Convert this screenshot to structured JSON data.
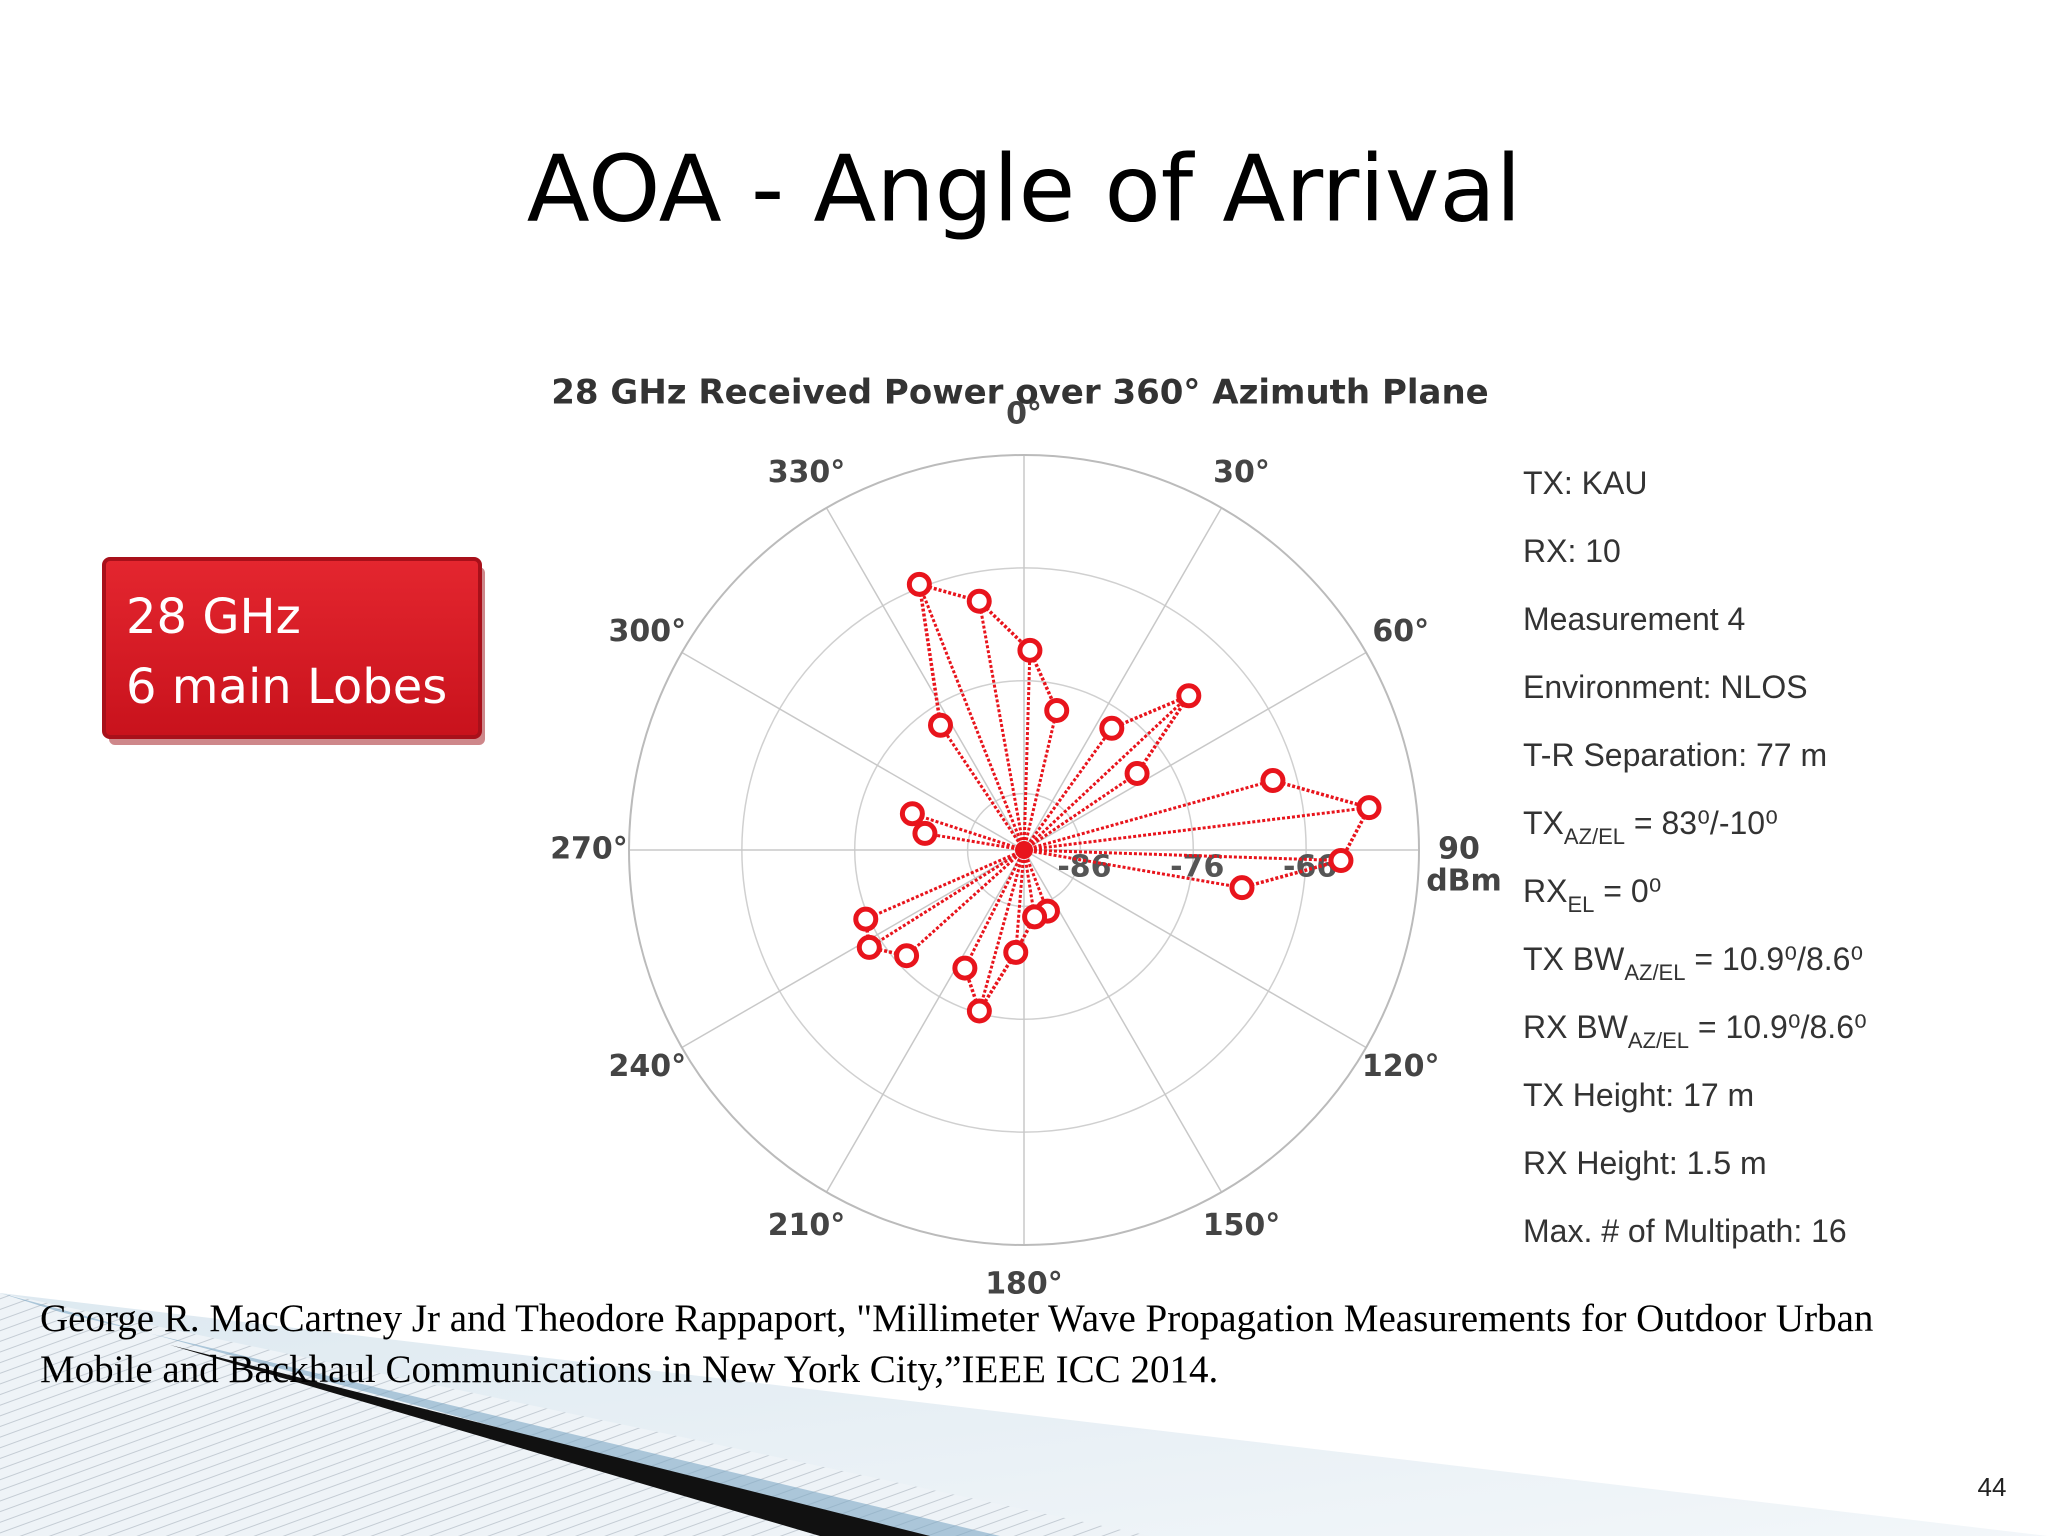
{
  "title": "AOA - Angle of Arrival",
  "callout": {
    "lines": [
      "28 GHz",
      "6 main Lobes"
    ]
  },
  "info": [
    {
      "main": "TX: KAU"
    },
    {
      "main": "RX: 10"
    },
    {
      "main": "Measurement 4"
    },
    {
      "main": "Environment: NLOS"
    },
    {
      "main": "T-R Separation: 77 m"
    },
    {
      "main": "TX",
      "sub": "AZ/EL",
      "rest": " = 83⁰/-10⁰"
    },
    {
      "main": "RX",
      "sub": "EL",
      "rest": " = 0⁰"
    },
    {
      "main": "TX BW",
      "sub": "AZ/EL",
      "rest": " = 10.9⁰/8.6⁰"
    },
    {
      "main": "RX BW",
      "sub": "AZ/EL",
      "rest": " = 10.9⁰/8.6⁰"
    },
    {
      "main": "TX Height: 17 m"
    },
    {
      "main": "RX Height: 1.5 m"
    },
    {
      "main": "Max. # of Multipath: 16"
    }
  ],
  "citation": {
    "lines": [
      "George R. MacCartney Jr and Theodore Rappaport, \"Millimeter Wave Propagation Measurements for Outdoor Urban",
      "Mobile and Backhaul Communications in New York City,”IEEE ICC 2014."
    ]
  },
  "page_number": "44",
  "chart_data": {
    "type": "polar",
    "title": "28 GHz Received Power over 360° Azimuth Plane",
    "x": [
      1.7,
      13.2,
      35.8,
      46.9,
      55.9,
      74.4,
      83,
      91.9,
      99.8,
      159,
      171,
      184.6,
      195.5,
      206.6,
      228,
      237.8,
      246.4,
      279.5,
      288,
      326.2,
      338.5,
      349.8
    ],
    "values": [
      -73.3,
      -78.3,
      -77.7,
      -71,
      -78.9,
      -68.1,
      -60.2,
      -62.9,
      -71.4,
      -85.2,
      -85,
      -81.9,
      -76.2,
      -79.3,
      -77,
      -74.8,
      -75.7,
      -82.1,
      -80.6,
      -77.7,
      -65.7,
      -68.6
    ],
    "color": "#e8141c",
    "rlim": [
      -91,
      -56
    ],
    "rticks": [
      -86,
      -76,
      -66
    ],
    "r_unit": "dBm",
    "thetaticks": [
      {
        "value": 0,
        "label": "0°"
      },
      {
        "value": 30,
        "label": "30°"
      },
      {
        "value": 60,
        "label": "60°"
      },
      {
        "value": 90,
        "label": "90"
      },
      {
        "value": 120,
        "label": "120°"
      },
      {
        "value": 150,
        "label": "150°"
      },
      {
        "value": 180,
        "label": "180°"
      },
      {
        "value": 210,
        "label": "210°"
      },
      {
        "value": 240,
        "label": "240°"
      },
      {
        "value": 270,
        "label": "270°"
      },
      {
        "value": 300,
        "label": "300°"
      },
      {
        "value": 330,
        "label": "330°"
      }
    ],
    "grid": true
  }
}
